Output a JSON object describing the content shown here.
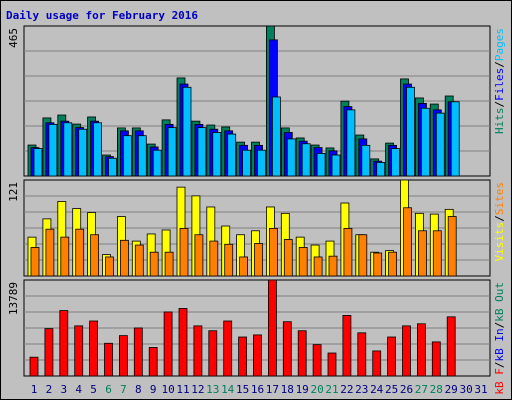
{
  "title": "Daily usage for February 2016",
  "separator": "/",
  "chart_data": [
    {
      "type": "bar",
      "ylim": [
        0,
        465
      ],
      "yticks": [
        465
      ],
      "series": [
        {
          "name": "Hits",
          "color": "#00805c",
          "values": [
            96,
            180,
            189,
            161,
            183,
            65,
            149,
            149,
            99,
            174,
            304,
            170,
            158,
            152,
            105,
            105,
            465,
            149,
            118,
            96,
            87,
            232,
            127,
            53,
            102,
            301,
            242,
            223,
            248,
            null,
            null
          ]
        },
        {
          "name": "Files",
          "color": "#0000ff",
          "values": [
            88,
            165,
            170,
            150,
            170,
            60,
            140,
            140,
            90,
            160,
            285,
            160,
            145,
            140,
            95,
            95,
            422,
            135,
            108,
            88,
            78,
            215,
            115,
            46,
            95,
            285,
            225,
            205,
            230,
            null,
            null
          ]
        },
        {
          "name": "Pages",
          "color": "#00bfff",
          "values": [
            85,
            160,
            165,
            145,
            165,
            55,
            125,
            125,
            80,
            150,
            275,
            150,
            135,
            130,
            80,
            80,
            245,
            115,
            100,
            70,
            65,
            205,
            95,
            42,
            85,
            275,
            210,
            195,
            230,
            null,
            null
          ]
        }
      ]
    },
    {
      "type": "bar",
      "ylim": [
        0,
        121
      ],
      "yticks": [
        121
      ],
      "series": [
        {
          "name": "Visits",
          "color": "#ffff00",
          "values": [
            49,
            72,
            94,
            85,
            80,
            27,
            75,
            44,
            53,
            58,
            112,
            101,
            87,
            63,
            52,
            57,
            87,
            79,
            49,
            39,
            44,
            92,
            52,
            30,
            32,
            121,
            79,
            78,
            84,
            null,
            null
          ]
        },
        {
          "name": "Sites",
          "color": "#ff8000",
          "values": [
            36,
            59,
            49,
            59,
            52,
            24,
            45,
            39,
            30,
            30,
            60,
            52,
            44,
            40,
            24,
            41,
            60,
            46,
            36,
            24,
            25,
            60,
            52,
            29,
            30,
            86,
            57,
            57,
            75,
            null,
            null
          ]
        }
      ]
    },
    {
      "type": "bar",
      "ylim": [
        0,
        13789
      ],
      "yticks": [
        13789
      ],
      "categories": [
        "1",
        "2",
        "3",
        "4",
        "5",
        "6",
        "7",
        "8",
        "9",
        "10",
        "11",
        "12",
        "13",
        "14",
        "15",
        "16",
        "17",
        "18",
        "19",
        "20",
        "21",
        "22",
        "23",
        "24",
        "25",
        "26",
        "27",
        "28",
        "29",
        "30",
        "31"
      ],
      "category_colors": [
        "#000080",
        "#000080",
        "#000080",
        "#000080",
        "#000080",
        "#00805c",
        "#00805c",
        "#000080",
        "#000080",
        "#000080",
        "#000080",
        "#000080",
        "#00805c",
        "#00805c",
        "#000080",
        "#000080",
        "#000080",
        "#000080",
        "#000080",
        "#00805c",
        "#00805c",
        "#000080",
        "#000080",
        "#000080",
        "#000080",
        "#000080",
        "#00805c",
        "#00805c",
        "#000080",
        "#000080",
        "#000080"
      ],
      "series": [
        {
          "name": "kB F",
          "color": "#ff0000",
          "values": [
            2700,
            6800,
            9400,
            7200,
            7900,
            4700,
            5800,
            6900,
            4100,
            9200,
            9700,
            7200,
            6500,
            7900,
            5600,
            5900,
            13789,
            7800,
            6500,
            4500,
            3300,
            8700,
            6200,
            3600,
            5600,
            7200,
            7500,
            4900,
            8500,
            null,
            null
          ]
        },
        {
          "name": "kB In",
          "color": "#0000ff"
        },
        {
          "name": "kB Out",
          "color": "#00805c"
        }
      ]
    }
  ]
}
